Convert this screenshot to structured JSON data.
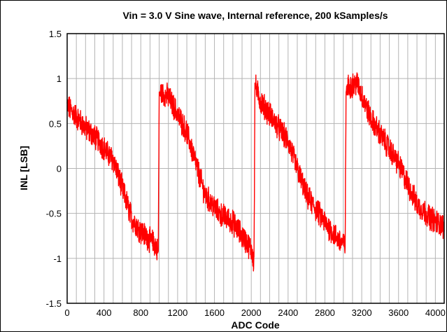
{
  "chart_data": {
    "type": "line",
    "title": "Vin = 3.0 V Sine wave, Internal reference, 200 kSamples/s",
    "xlabel": "ADC Code",
    "ylabel": "INL [LSB]",
    "xlim": [
      0,
      4096
    ],
    "ylim": [
      -1.5,
      1.5
    ],
    "x_ticks": [
      0,
      400,
      800,
      1200,
      1600,
      2000,
      2400,
      2800,
      3200,
      3600,
      4000
    ],
    "y_ticks": [
      1.5,
      1,
      0.5,
      0,
      -0.5,
      -1,
      -1.5
    ],
    "y_tick_labels": [
      "1.5",
      "1",
      "0.5",
      "0",
      "-0.5",
      "-1",
      "-1.5"
    ],
    "x_tick_labels": [
      "0",
      "400",
      "800",
      "1200",
      "1600",
      "2000",
      "2400",
      "2800",
      "3200",
      "3600",
      "4000"
    ],
    "grid": true,
    "series": [
      {
        "color": "#ff0000",
        "noise_amplitude": 0.12,
        "x": [
          0,
          200,
          350,
          450,
          500,
          700,
          800,
          960,
          990,
          1000,
          1100,
          1300,
          1500,
          1650,
          1800,
          2000,
          2030,
          2040,
          2050,
          2100,
          2400,
          2600,
          2800,
          2950,
          3020,
          3030,
          3040,
          3150,
          3300,
          3600,
          3800,
          3950,
          4095
        ],
        "y": [
          0.7,
          0.45,
          0.3,
          0.15,
          0.1,
          -0.55,
          -0.7,
          -0.85,
          -0.95,
          0.85,
          0.8,
          0.4,
          -0.3,
          -0.5,
          -0.6,
          -0.9,
          -1.05,
          0.95,
          0.9,
          0.75,
          0.3,
          -0.3,
          -0.6,
          -0.8,
          -0.85,
          0.85,
          0.9,
          0.95,
          0.55,
          0.05,
          -0.4,
          -0.55,
          -0.65
        ]
      }
    ]
  }
}
